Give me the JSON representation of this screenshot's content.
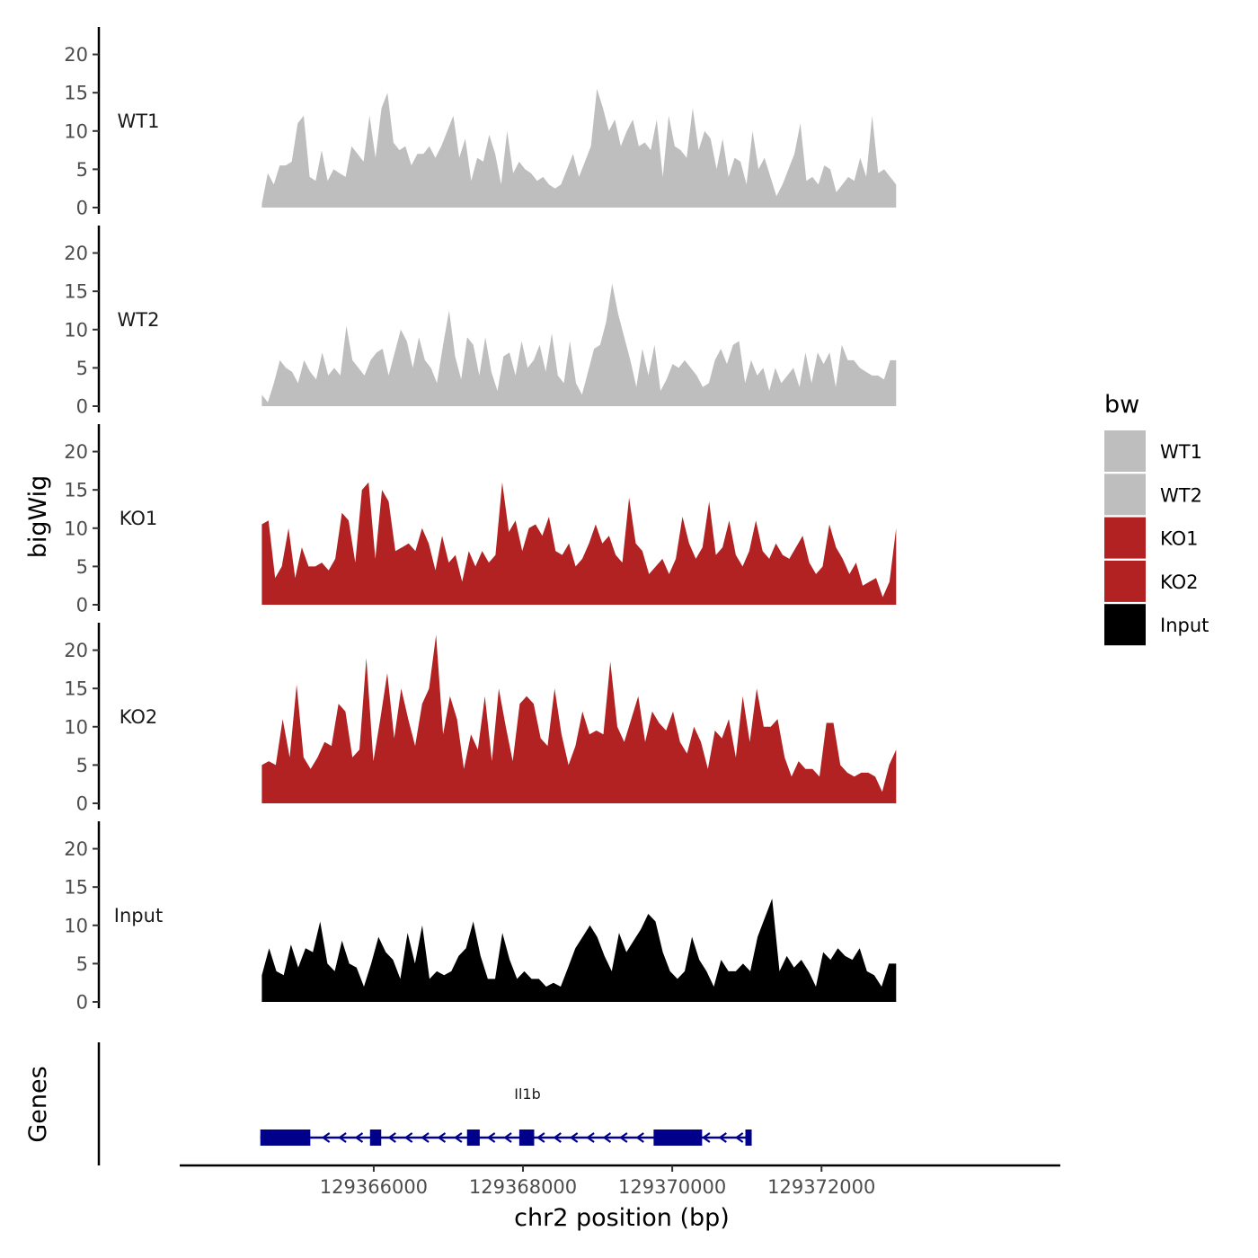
{
  "chart_data": {
    "type": "area",
    "title": "",
    "ylabel": "bigWig",
    "xlabel": "chr2 position (bp)",
    "xlim": [
      129363400,
      129375200
    ],
    "ylim": [
      0,
      23
    ],
    "y_ticks": [
      0,
      5,
      10,
      15,
      20
    ],
    "x_ticks": [
      129366000,
      129368000,
      129370000,
      129372000
    ],
    "x_tick_labels": [
      "129366000",
      "129368000",
      "129370000",
      "129372000"
    ],
    "x_range": [
      129364500,
      129373000
    ],
    "tracks": [
      {
        "name": "WT1",
        "color": "#bebebe",
        "values": [
          0.5,
          4.5,
          3,
          5.5,
          5.5,
          6,
          11,
          12,
          4,
          3.5,
          7.5,
          3.5,
          5,
          4.5,
          4,
          8,
          7,
          6,
          12,
          6.5,
          13,
          15,
          8.5,
          7.5,
          8,
          5.5,
          7,
          7,
          8,
          6.5,
          8,
          10,
          12,
          6.5,
          9,
          3.5,
          6.5,
          6,
          9.5,
          7,
          3,
          10,
          4.5,
          6,
          5,
          4.5,
          3.5,
          4,
          3,
          2.5,
          3,
          5,
          7,
          4,
          6,
          8,
          15.5,
          13,
          10,
          11.5,
          8,
          10,
          11.5,
          8,
          8.5,
          7.5,
          11.5,
          4,
          12,
          8,
          7.5,
          6.5,
          13,
          7.5,
          10,
          9,
          5,
          9,
          4,
          6.5,
          6,
          3,
          10,
          5,
          6.5,
          4,
          1.5,
          3,
          5,
          7,
          11,
          3.5,
          4,
          3,
          5.5,
          5,
          2,
          3,
          4,
          3.5,
          6.5,
          4,
          12,
          4.5,
          5,
          4,
          3
        ]
      },
      {
        "name": "WT2",
        "color": "#bebebe",
        "values": [
          1.5,
          0.5,
          3,
          6,
          5,
          4.5,
          3,
          6,
          4.5,
          3.5,
          7,
          4,
          5,
          4,
          10.5,
          6,
          5,
          4,
          6,
          7,
          7.5,
          4,
          7,
          10,
          8.5,
          5,
          9,
          6,
          5,
          3,
          8,
          12.5,
          6.5,
          3.5,
          9,
          8,
          4,
          9,
          4.5,
          2,
          6.5,
          7,
          4,
          8.5,
          5,
          6,
          8,
          4.5,
          9.5,
          4,
          3,
          8.5,
          3,
          1.5,
          4.5,
          7.5,
          8,
          11,
          16,
          12,
          9,
          6,
          2.5,
          7.5,
          4,
          8,
          2,
          3.5,
          5.5,
          5,
          6,
          5,
          4,
          2.5,
          3,
          6,
          7.5,
          5.5,
          8,
          8.5,
          3,
          6,
          4,
          5,
          2,
          5,
          3,
          4,
          5,
          2.5,
          7,
          3,
          7,
          5.5,
          7,
          2.5,
          8,
          6,
          6,
          5,
          4.5,
          4,
          4,
          3.5,
          6,
          6
        ]
      },
      {
        "name": "KO1",
        "color": "#b22222",
        "values": [
          10.5,
          11,
          3.5,
          5,
          10,
          3.5,
          7.5,
          5,
          5,
          5.5,
          4.5,
          6,
          12,
          11,
          5.5,
          15,
          16,
          6,
          15,
          13.5,
          7,
          7.5,
          8,
          7,
          10,
          8,
          4.5,
          9,
          5.5,
          6.5,
          3,
          7,
          5,
          7,
          5.5,
          6.5,
          16,
          9.5,
          11,
          7,
          10,
          10.5,
          9,
          11.5,
          7,
          6.5,
          8,
          5,
          6,
          8,
          10.5,
          8,
          9,
          6.5,
          5.5,
          14,
          8,
          7,
          4,
          5,
          6,
          4,
          6,
          11.5,
          8,
          6,
          7.5,
          13.5,
          6.5,
          7.5,
          11,
          6.5,
          5,
          7,
          11,
          7,
          6,
          8,
          6.5,
          6,
          7.5,
          9,
          5.5,
          4,
          5,
          10.5,
          7.5,
          6,
          4,
          5.5,
          2.5,
          3,
          3.5,
          1,
          3,
          10
        ]
      },
      {
        "name": "KO2",
        "color": "#b22222",
        "values": [
          5,
          5.5,
          5,
          11,
          6,
          15.5,
          6,
          4.5,
          6,
          8,
          7.5,
          13,
          12,
          6,
          7,
          19,
          5.5,
          11,
          17,
          8.5,
          15,
          11,
          7.5,
          13,
          15,
          22,
          9,
          14,
          11,
          4.5,
          9,
          7,
          14,
          5.5,
          15,
          10,
          5.5,
          13,
          14,
          13,
          8.5,
          7.5,
          15,
          9,
          5,
          7.5,
          12,
          9,
          9.5,
          9,
          18.5,
          10,
          8,
          11,
          14,
          8,
          12,
          10.5,
          9.5,
          12,
          8,
          6.5,
          10,
          8,
          4.5,
          9.5,
          8.5,
          11,
          6,
          14,
          8,
          15,
          10,
          10,
          11,
          6,
          3.5,
          5.5,
          4.5,
          4.5,
          3.5,
          10.5,
          10.5,
          5,
          4,
          3.5,
          4,
          4,
          3.5,
          1.5,
          5,
          7
        ]
      },
      {
        "name": "Input",
        "color": "#000000",
        "values": [
          3.5,
          7,
          4,
          3.5,
          7.5,
          4.5,
          7,
          6.5,
          10.5,
          5,
          4,
          8,
          5,
          4.5,
          2,
          5,
          8.5,
          6.5,
          5.5,
          3,
          9,
          5,
          10,
          3,
          4,
          3.5,
          4,
          6,
          7,
          10.5,
          6,
          3,
          3,
          9,
          5.5,
          3,
          4,
          3,
          3,
          2,
          2.5,
          2,
          4.5,
          7,
          8.5,
          10,
          8.5,
          6,
          4,
          9,
          6.5,
          8,
          9.5,
          11.5,
          10.5,
          6.5,
          4,
          3,
          4,
          8.5,
          5.5,
          4,
          2,
          5.5,
          4,
          4,
          5,
          4,
          8.5,
          11,
          13.5,
          4,
          6,
          4.5,
          5.5,
          4,
          2,
          6.5,
          5.5,
          7,
          6,
          5.5,
          7,
          4,
          3.5,
          2,
          5,
          5
        ]
      }
    ],
    "legend": {
      "title": "bw",
      "position": "right",
      "entries": [
        {
          "label": "WT1",
          "color": "#bebebe"
        },
        {
          "label": "WT2",
          "color": "#bebebe"
        },
        {
          "label": "KO1",
          "color": "#b22222"
        },
        {
          "label": "KO2",
          "color": "#b22222"
        },
        {
          "label": "Input",
          "color": "#000000"
        }
      ]
    },
    "genes_track": {
      "ylabel": "Genes",
      "color": "#00008b",
      "gene_name": "Il1b",
      "strand": "-",
      "tx_start": 129364480,
      "tx_end": 129371060,
      "exons": [
        [
          129364480,
          129365150
        ],
        [
          129365950,
          129366100
        ],
        [
          129367250,
          129367420
        ],
        [
          129367950,
          129368150
        ],
        [
          129369750,
          129370400
        ],
        [
          129370980,
          129371060
        ]
      ]
    }
  }
}
